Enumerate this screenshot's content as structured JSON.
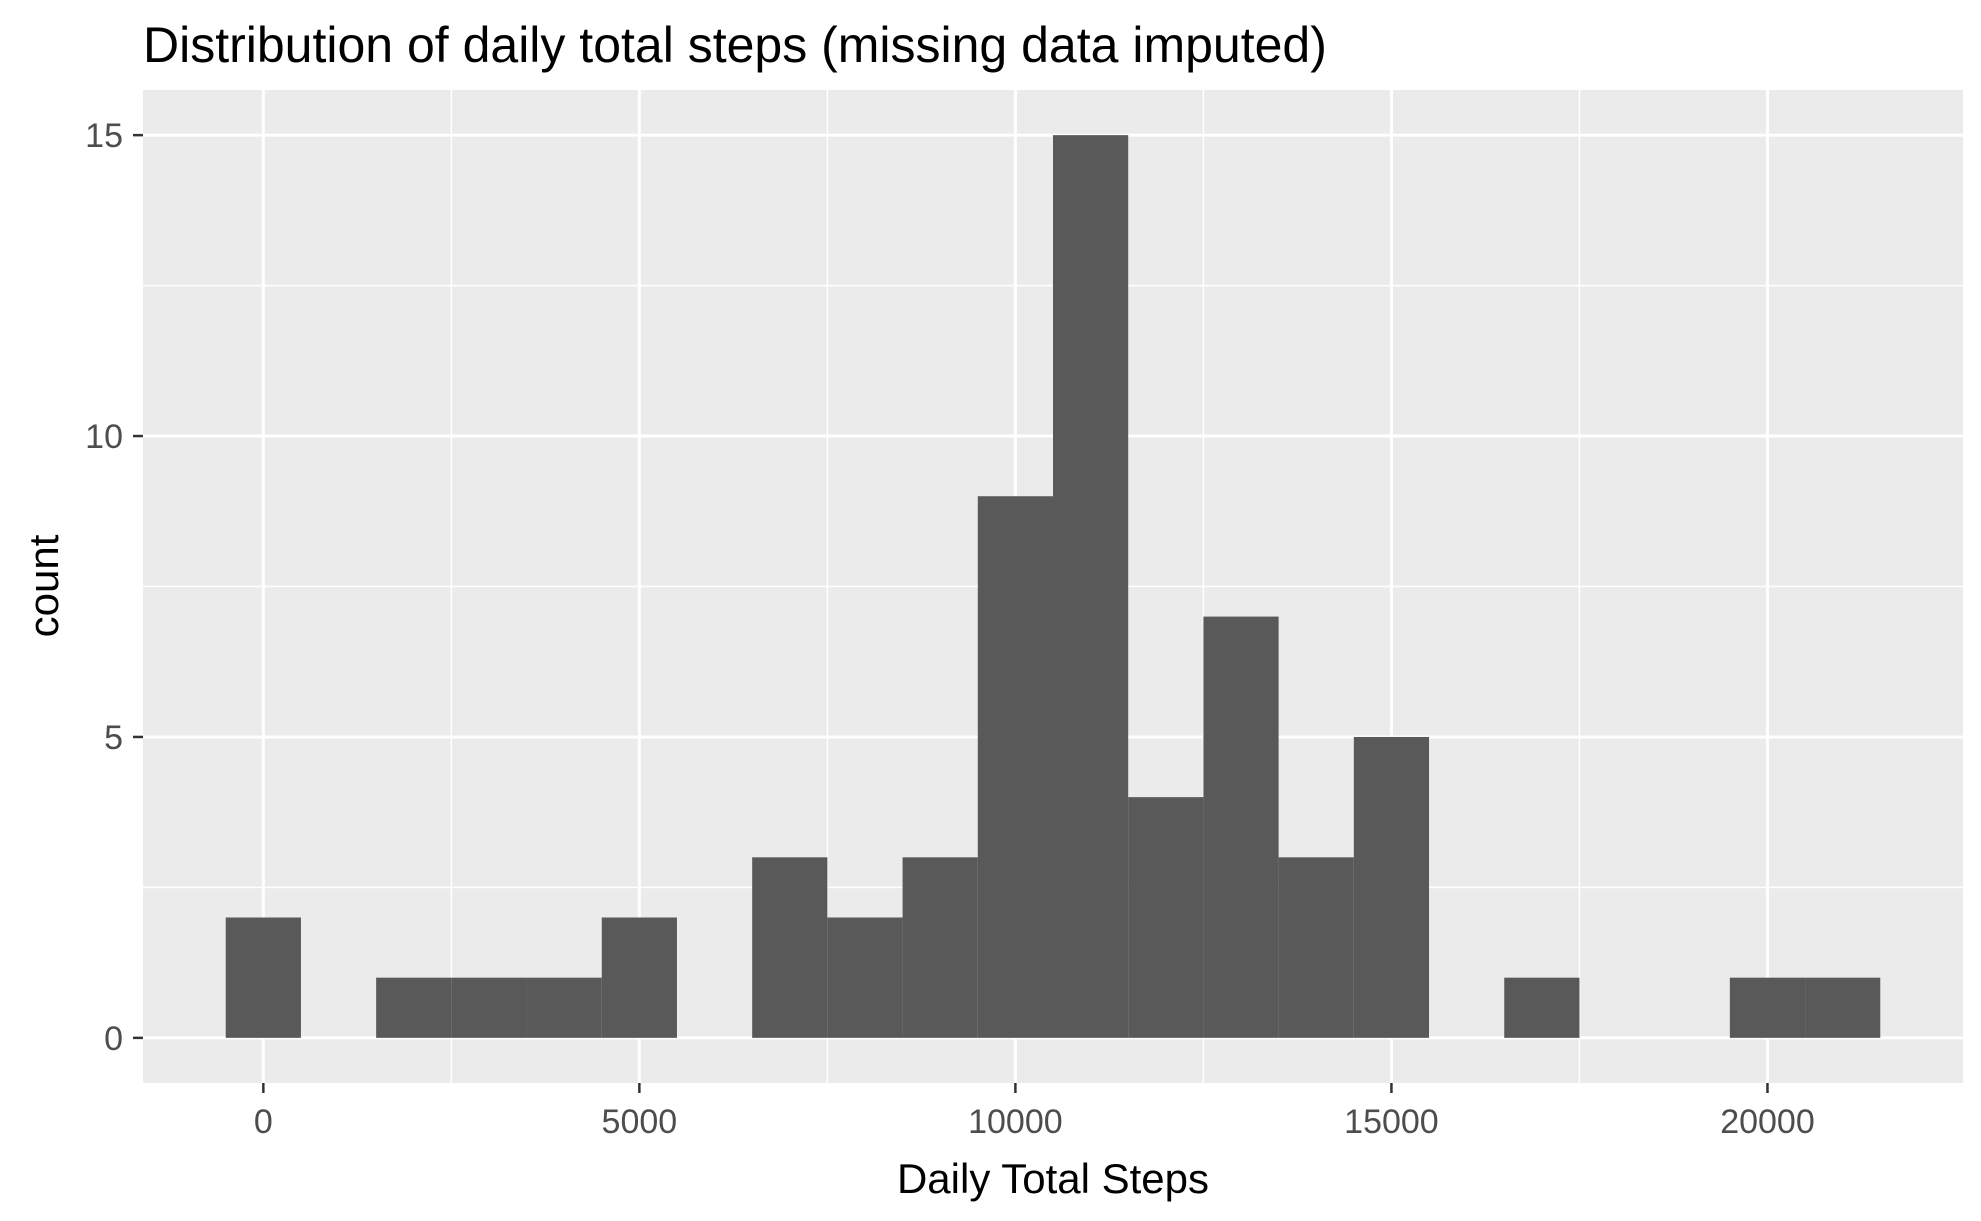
{
  "chart_data": {
    "type": "bar",
    "subtype": "histogram",
    "title": "Distribution of daily total steps (missing data imputed)",
    "xlabel": "Daily Total Steps",
    "ylabel": "count",
    "bin_width": 1000,
    "x": [
      0,
      2000,
      3000,
      4000,
      5000,
      7000,
      8000,
      9000,
      10000,
      11000,
      12000,
      13000,
      14000,
      15000,
      17000,
      20000,
      21000
    ],
    "values": [
      2,
      1,
      1,
      1,
      2,
      3,
      2,
      3,
      9,
      15,
      4,
      7,
      3,
      5,
      1,
      1,
      1
    ],
    "xlim": [
      -1600,
      22600
    ],
    "ylim": [
      -0.75,
      15.75
    ],
    "x_ticks": [
      0,
      5000,
      10000,
      15000,
      20000
    ],
    "x_tick_labels": [
      "0",
      "5000",
      "10000",
      "15000",
      "20000"
    ],
    "y_ticks": [
      0,
      5,
      10,
      15
    ],
    "y_tick_labels": [
      "0",
      "5",
      "10",
      "15"
    ],
    "grid": true,
    "colors": {
      "bar": "#595959",
      "panel_background": "#ebebeb",
      "grid": "#ffffff",
      "tick_label": "#4d4d4d",
      "text": "#000000"
    }
  }
}
